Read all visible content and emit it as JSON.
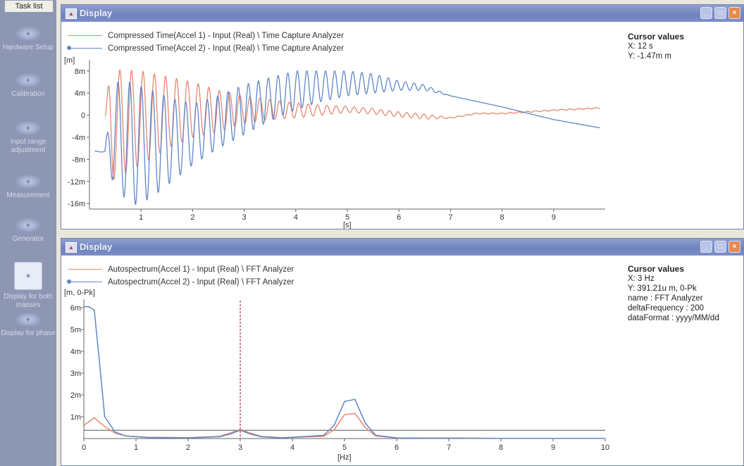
{
  "tasklist": {
    "header": "Task list",
    "items": [
      {
        "label": "Hardware Setup"
      },
      {
        "label": "Calibration"
      },
      {
        "label": "Input range adjustment"
      },
      {
        "label": "Measurement"
      },
      {
        "label": "Generator"
      },
      {
        "label": "Display for both masses",
        "selected": true
      },
      {
        "label": "Display for phase"
      }
    ]
  },
  "colors": {
    "series1": "#e8866e",
    "series2": "#5f86c8",
    "titlebar": "#7486c0",
    "sidebar": "#8d96b3"
  },
  "window1": {
    "title": "Display",
    "legend": [
      "Compressed Time(Accel 1) - Input (Real) \\ Time Capture Analyzer",
      "Compressed Time(Accel 2) - Input (Real) \\ Time Capture Analyzer"
    ],
    "cursor": {
      "heading": "Cursor values",
      "lines": [
        "X: 12 s",
        "Y: -1.47m m"
      ]
    }
  },
  "window2": {
    "title": "Display",
    "legend": [
      "Autospectrum(Accel 1) - Input (Real) \\ FFT Analyzer",
      "Autospectrum(Accel 2) - Input (Real) \\ FFT Analyzer"
    ],
    "cursor": {
      "heading": "Cursor values",
      "lines": [
        "X: 3 Hz",
        "Y: 391.21u m, 0-Pk",
        "name : FFT Analyzer",
        "deltaFrequency : 200",
        "dataFormat : yyyy/MM/dd"
      ]
    }
  },
  "chart_data": [
    {
      "type": "line",
      "ylabel": "[m]",
      "xlabel": "[s]",
      "xlim": [
        0,
        10
      ],
      "ylim": [
        -17,
        9
      ],
      "yticks": [
        "8m",
        "4m",
        "0",
        "-4m",
        "-8m",
        "-12m",
        "-16m"
      ],
      "xticks": [
        "1",
        "2",
        "3",
        "4",
        "5",
        "6",
        "7",
        "8",
        "9"
      ],
      "series": [
        {
          "name": "Compressed Time(Accel 1) - Input (Real) \\ Time Capture Analyzer",
          "color": "#e8866e",
          "envelope": [
            [
              0.3,
              -0.5,
              0.2
            ],
            [
              0.4,
              -12,
              8
            ],
            [
              0.6,
              -11,
              8.2
            ],
            [
              1.0,
              -9,
              8
            ],
            [
              1.5,
              -6,
              7
            ],
            [
              2,
              -4,
              6
            ],
            [
              2.5,
              -3,
              4.5
            ],
            [
              3,
              -1.5,
              3.5
            ],
            [
              3.5,
              -0.8,
              2.8
            ],
            [
              4,
              -0.5,
              2.2
            ],
            [
              4.5,
              0,
              1.8
            ],
            [
              5,
              0.5,
              1.6
            ],
            [
              5.5,
              0.2,
              1.2
            ],
            [
              6,
              -0.3,
              0.6
            ],
            [
              6.5,
              -0.7,
              0.2
            ],
            [
              7,
              -0.6,
              -0.4
            ],
            [
              7.5,
              0.2,
              0.4
            ],
            [
              8,
              0.2,
              0.4
            ],
            [
              9,
              0.8,
              1
            ],
            [
              9.9,
              1.2,
              1.4
            ]
          ]
        },
        {
          "name": "Compressed Time(Accel 2) - Input (Real) \\ Time Capture Analyzer",
          "color": "#5f86c8",
          "envelope": [
            [
              0.1,
              -6.5,
              -6.5
            ],
            [
              0.3,
              -6.8,
              -6.5
            ],
            [
              0.45,
              -12,
              6
            ],
            [
              0.8,
              -16.5,
              6
            ],
            [
              1.2,
              -15,
              4.5
            ],
            [
              1.6,
              -12,
              3
            ],
            [
              2,
              -9,
              2
            ],
            [
              2.5,
              -6,
              3.5
            ],
            [
              3,
              -3.5,
              5.5
            ],
            [
              3.5,
              -1,
              6.8
            ],
            [
              4,
              1,
              8
            ],
            [
              4.5,
              2.5,
              8
            ],
            [
              5,
              3.5,
              8
            ],
            [
              5.5,
              4,
              7.5
            ],
            [
              6,
              4.5,
              6.2
            ],
            [
              6.5,
              4.5,
              5.5
            ],
            [
              7,
              3.5,
              3.5
            ],
            [
              8,
              1.5,
              1.5
            ],
            [
              9,
              -0.8,
              -0.8
            ],
            [
              9.9,
              -2.3,
              -2.3
            ]
          ]
        }
      ]
    },
    {
      "type": "line",
      "ylabel": "[m, 0-Pk]",
      "xlabel": "[Hz]",
      "xlim": [
        0,
        10
      ],
      "ylim": [
        0,
        6.2
      ],
      "yticks": [
        "6m",
        "5m",
        "4m",
        "3m",
        "2m",
        "1m"
      ],
      "xticks": [
        "0",
        "1",
        "2",
        "3",
        "4",
        "5",
        "6",
        "7",
        "8",
        "9",
        "10"
      ],
      "cursor_x": 3,
      "series": [
        {
          "name": "Autospectrum(Accel 1) - Input (Real) \\ FFT Analyzer",
          "color": "#e8866e",
          "points": [
            [
              0,
              0.6
            ],
            [
              0.2,
              0.95
            ],
            [
              0.4,
              0.55
            ],
            [
              0.6,
              0.25
            ],
            [
              0.8,
              0.12
            ],
            [
              1.2,
              0.06
            ],
            [
              2.0,
              0.04
            ],
            [
              2.6,
              0.1
            ],
            [
              2.8,
              0.25
            ],
            [
              3.0,
              0.42
            ],
            [
              3.2,
              0.25
            ],
            [
              3.4,
              0.1
            ],
            [
              3.8,
              0.04
            ],
            [
              4.6,
              0.1
            ],
            [
              4.8,
              0.4
            ],
            [
              5.0,
              1.1
            ],
            [
              5.2,
              1.15
            ],
            [
              5.4,
              0.5
            ],
            [
              5.6,
              0.12
            ],
            [
              6.0,
              0.03
            ],
            [
              6.5,
              0.02
            ],
            [
              7,
              0.02
            ],
            [
              8,
              0.01
            ],
            [
              9,
              0.01
            ],
            [
              10,
              0.01
            ]
          ]
        },
        {
          "name": "Autospectrum(Accel 2) - Input (Real) \\ FFT Analyzer",
          "color": "#5f86c8",
          "points": [
            [
              0,
              6.05
            ],
            [
              0.1,
              6.05
            ],
            [
              0.2,
              5.9
            ],
            [
              0.3,
              3.5
            ],
            [
              0.4,
              1.0
            ],
            [
              0.6,
              0.3
            ],
            [
              0.8,
              0.12
            ],
            [
              1.2,
              0.05
            ],
            [
              2.0,
              0.03
            ],
            [
              2.6,
              0.08
            ],
            [
              2.8,
              0.2
            ],
            [
              3.0,
              0.38
            ],
            [
              3.2,
              0.2
            ],
            [
              3.4,
              0.08
            ],
            [
              3.8,
              0.03
            ],
            [
              4.6,
              0.15
            ],
            [
              4.8,
              0.6
            ],
            [
              5.0,
              1.7
            ],
            [
              5.2,
              1.8
            ],
            [
              5.4,
              0.7
            ],
            [
              5.6,
              0.15
            ],
            [
              6.0,
              0.03
            ],
            [
              6.5,
              0.02
            ],
            [
              7,
              0.02
            ],
            [
              8,
              0.01
            ],
            [
              9,
              0.01
            ],
            [
              10,
              0.01
            ]
          ]
        }
      ],
      "reference_line": 0.38
    }
  ]
}
